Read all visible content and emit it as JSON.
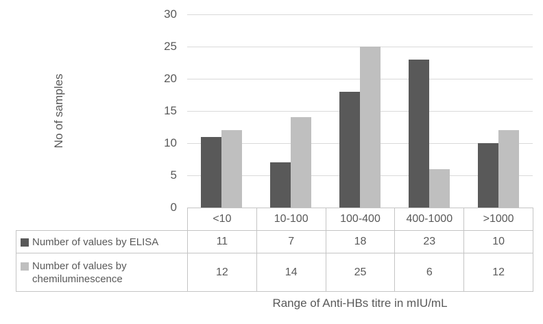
{
  "chart_data": {
    "type": "bar",
    "title": "",
    "categories": [
      "<10",
      "10-100",
      "100-400",
      "400-1000",
      ">1000"
    ],
    "series": [
      {
        "name": "Number of values by ELISA",
        "color": "#595959",
        "values": [
          11,
          7,
          18,
          23,
          10
        ]
      },
      {
        "name": "Number of values by chemiluminescence",
        "color": "#bfbfbf",
        "values": [
          12,
          14,
          25,
          6,
          12
        ]
      }
    ],
    "xlabel": "Range of Anti-HBs titre in mIU/mL",
    "ylabel": "No of samples",
    "ylim": [
      0,
      30
    ],
    "yticks": [
      0,
      5,
      10,
      15,
      20,
      25,
      30
    ],
    "grid": true,
    "legend_position": "data-table-left"
  },
  "colors": {
    "text": "#595959",
    "gridline": "#d9d9d9",
    "table_border": "#c4c4c4",
    "series_dark": "#595959",
    "series_light": "#bfbfbf"
  }
}
